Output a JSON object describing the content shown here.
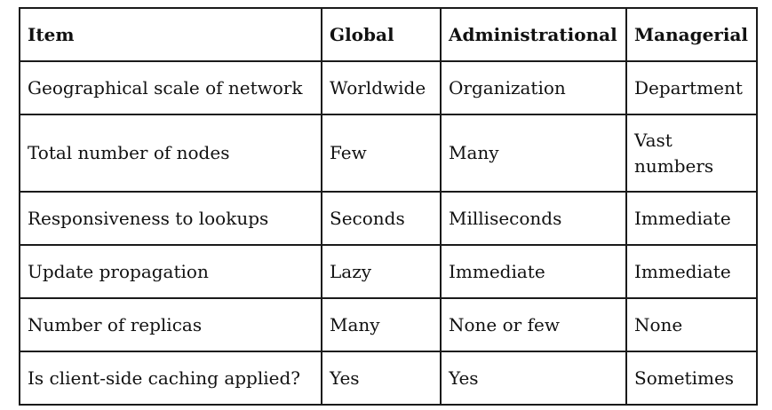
{
  "table": {
    "headers": [
      "Item",
      "Global",
      "Administrational",
      "Managerial"
    ],
    "rows": [
      [
        "Geographical scale of network",
        "Worldwide",
        "Organization",
        "Department"
      ],
      [
        "Total number of nodes",
        "Few",
        "Many",
        "Vast numbers"
      ],
      [
        "Responsiveness to lookups",
        "Seconds",
        "Milliseconds",
        "Immediate"
      ],
      [
        "Update propagation",
        "Lazy",
        "Immediate",
        "Immediate"
      ],
      [
        "Number of replicas",
        "Many",
        "None or few",
        "None"
      ],
      [
        "Is client-side caching applied?",
        "Yes",
        "Yes",
        "Sometimes"
      ]
    ]
  }
}
